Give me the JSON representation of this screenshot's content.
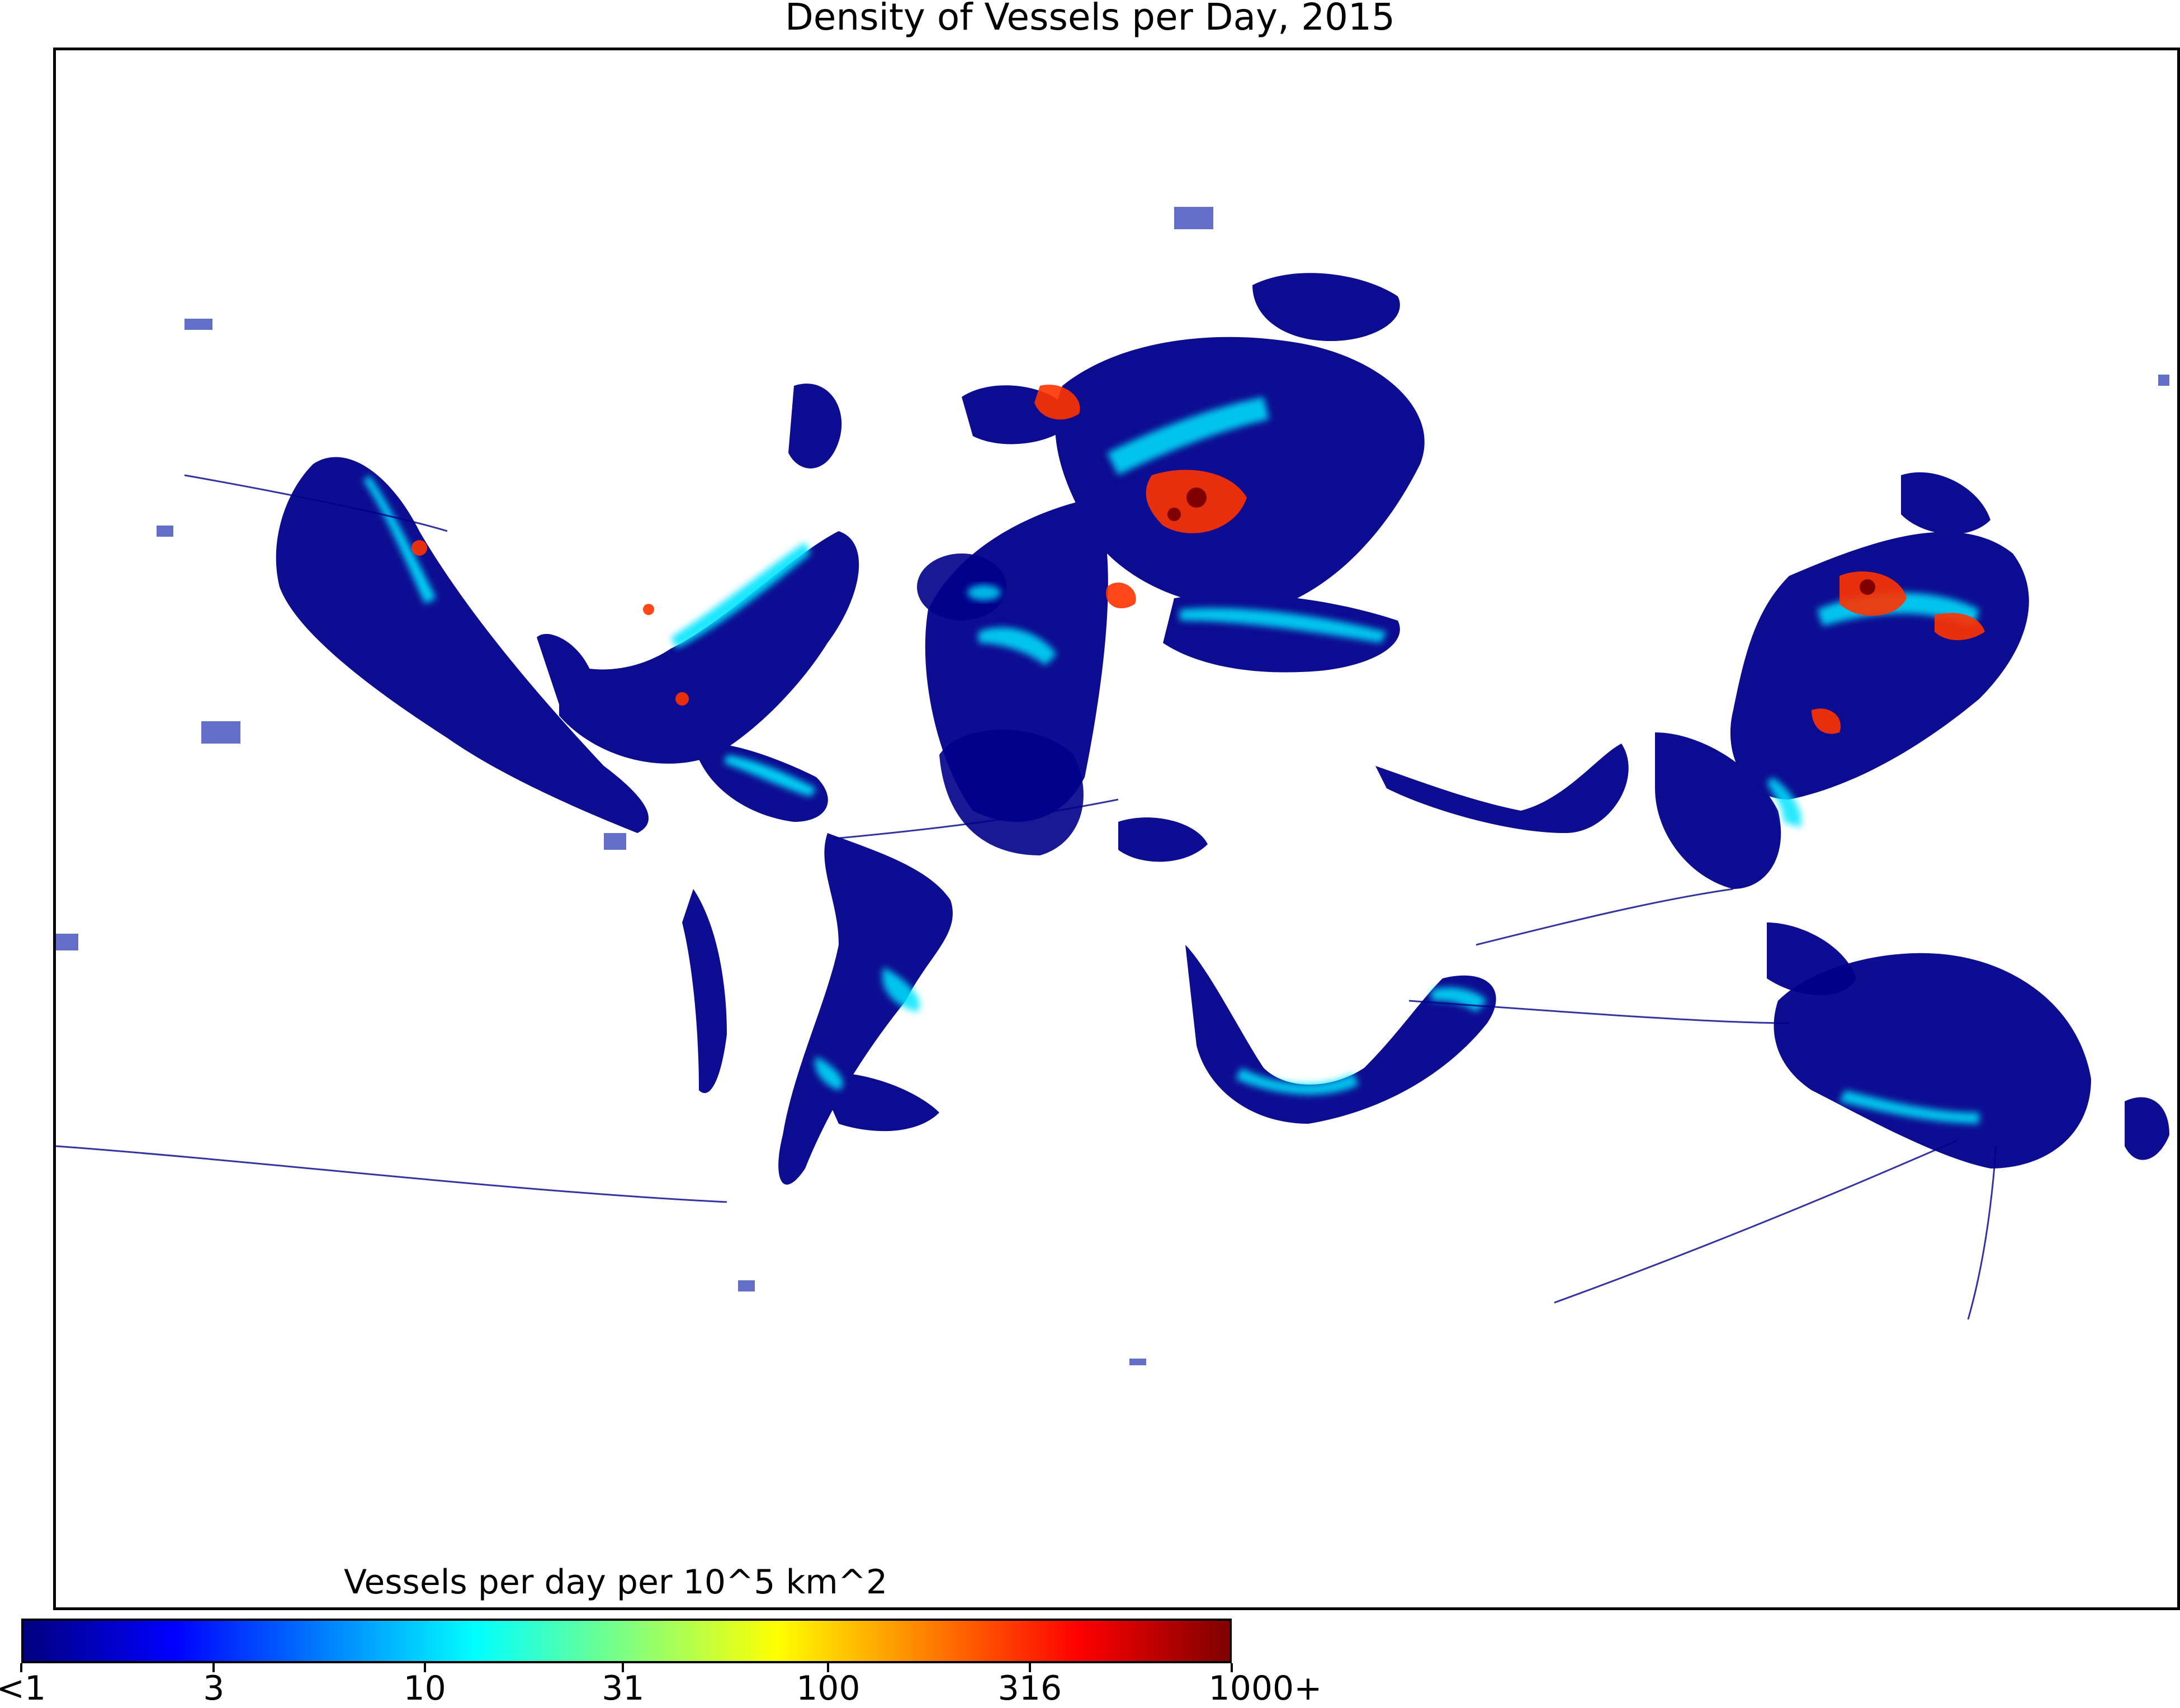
{
  "title": "Density of Vessels per Day, 2015",
  "colorbar": {
    "title": "Vessels per day per 10^5 km^2",
    "scale": "log",
    "colormap": "jet",
    "colors": [
      "#00007f",
      "#0000ff",
      "#007fff",
      "#00ffff",
      "#7fff7f",
      "#ffff00",
      "#ff7f00",
      "#ff0000",
      "#7f0000"
    ],
    "ticks": [
      {
        "label": "<1",
        "value": 1
      },
      {
        "label": "3",
        "value": 3
      },
      {
        "label": "10",
        "value": 10
      },
      {
        "label": "31",
        "value": 31
      },
      {
        "label": "100",
        "value": 100
      },
      {
        "label": "316",
        "value": 316
      },
      {
        "label": "1000+",
        "value": 1000
      }
    ]
  },
  "map": {
    "description_colors": {
      "low": "#00008b",
      "medium": "#00e5ff",
      "high": "#ff3300",
      "very_high": "#800000"
    }
  }
}
